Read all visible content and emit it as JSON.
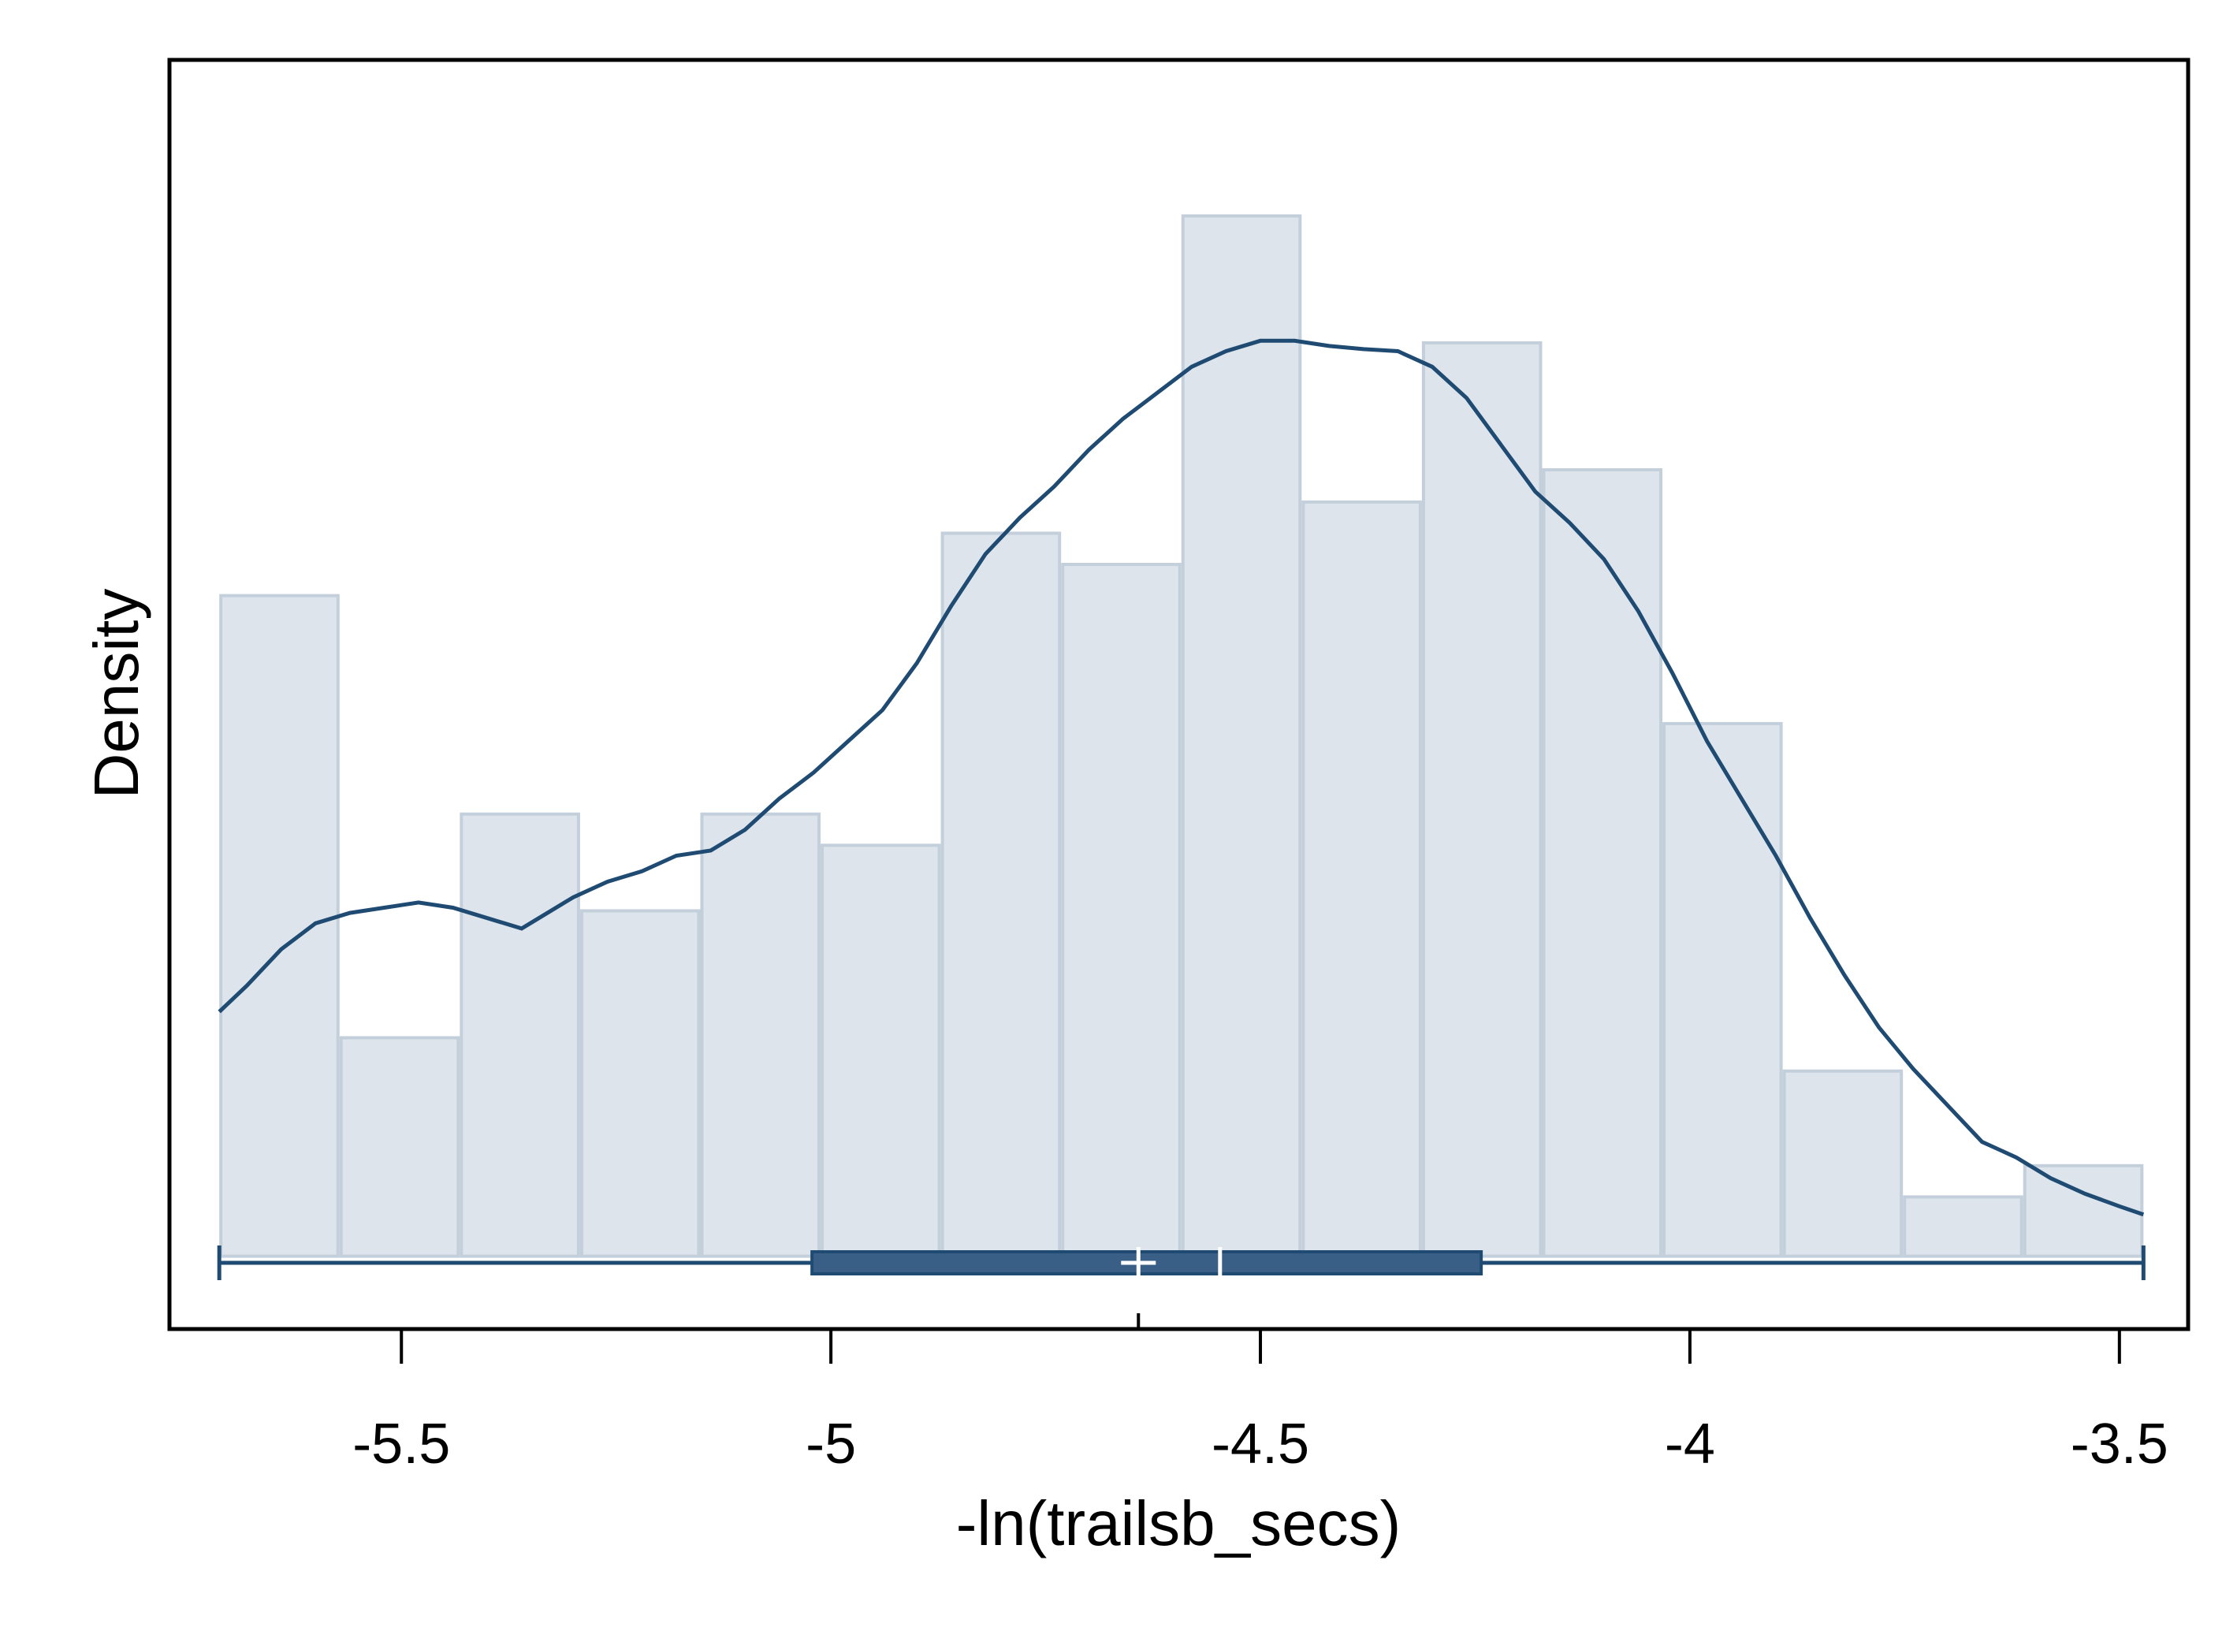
{
  "chart_data": {
    "type": "histogram",
    "xlabel": "-ln(trailsb_secs)",
    "ylabel": "Density",
    "xlim": [
      -5.77,
      -3.42
    ],
    "ylim": [
      -0.07,
      1.15
    ],
    "xticks": [
      -5.5,
      -5,
      -4.5,
      -4,
      -3.5
    ],
    "xtick_labels": [
      "-5.5",
      "-5",
      "-4.5",
      "-4",
      "-3.5"
    ],
    "grid": false,
    "bins": {
      "edges": [
        -5.712,
        -5.572,
        -5.432,
        -5.292,
        -5.152,
        -5.012,
        -4.872,
        -4.732,
        -4.592,
        -4.452,
        -4.312,
        -4.172,
        -4.032,
        -3.892,
        -3.752,
        -3.612,
        -3.472
      ],
      "density": [
        0.635,
        0.21,
        0.425,
        0.332,
        0.425,
        0.395,
        0.695,
        0.665,
        1.0,
        0.725,
        0.878,
        0.756,
        0.512,
        0.178,
        0.057,
        0.087
      ]
    },
    "kde": {
      "x": [
        -5.712,
        -5.68,
        -5.64,
        -5.6,
        -5.56,
        -5.52,
        -5.48,
        -5.44,
        -5.4,
        -5.36,
        -5.35,
        -5.3,
        -5.26,
        -5.22,
        -5.18,
        -5.14,
        -5.1,
        -5.06,
        -5.02,
        -4.98,
        -4.94,
        -4.9,
        -4.86,
        -4.82,
        -4.78,
        -4.74,
        -4.7,
        -4.66,
        -4.62,
        -4.58,
        -4.54,
        -4.5,
        -4.46,
        -4.42,
        -4.38,
        -4.34,
        -4.3,
        -4.26,
        -4.22,
        -4.18,
        -4.14,
        -4.1,
        -4.06,
        -4.02,
        -3.98,
        -3.94,
        -3.9,
        -3.86,
        -3.82,
        -3.78,
        -3.74,
        -3.7,
        -3.66,
        -3.62,
        -3.58,
        -3.54,
        -3.5,
        -3.472
      ],
      "y": [
        0.235,
        0.26,
        0.295,
        0.32,
        0.33,
        0.335,
        0.34,
        0.335,
        0.325,
        0.315,
        0.32,
        0.345,
        0.36,
        0.37,
        0.385,
        0.39,
        0.41,
        0.44,
        0.465,
        0.495,
        0.525,
        0.57,
        0.625,
        0.675,
        0.71,
        0.74,
        0.775,
        0.805,
        0.83,
        0.855,
        0.87,
        0.88,
        0.88,
        0.875,
        0.872,
        0.87,
        0.855,
        0.825,
        0.78,
        0.735,
        0.705,
        0.67,
        0.62,
        0.56,
        0.495,
        0.44,
        0.385,
        0.325,
        0.27,
        0.22,
        0.18,
        0.145,
        0.11,
        0.095,
        0.075,
        0.06,
        0.048,
        0.04
      ]
    },
    "boxplot": {
      "min": -5.712,
      "q1": -5.022,
      "median": -4.547,
      "mean": -4.642,
      "q3": -4.243,
      "max": -3.472
    },
    "mean_marker": -4.642,
    "colors": {
      "bar_fill": "#dde4ec",
      "bar_edge": "#c3cfda",
      "curve": "#1f4b73",
      "box_fill": "#3a5f86",
      "box_edge": "#1f4b73"
    }
  }
}
